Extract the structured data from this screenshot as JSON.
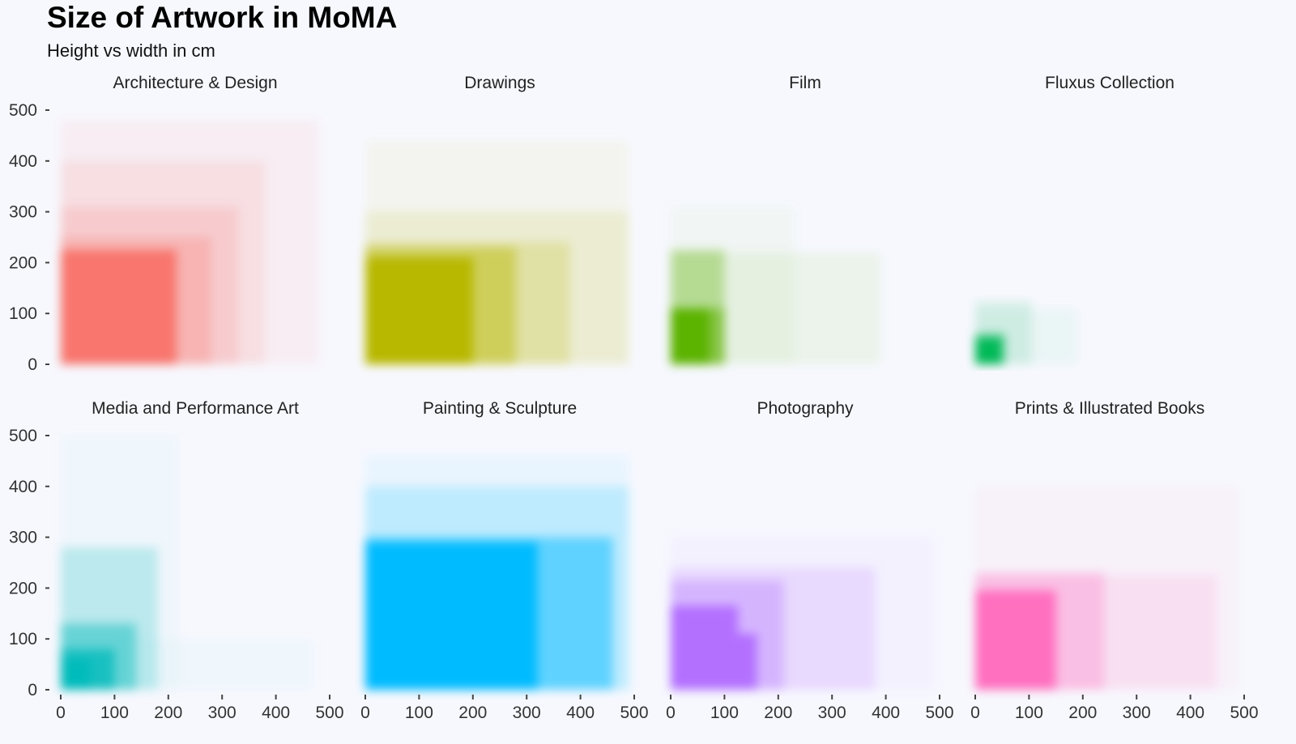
{
  "chart_data": {
    "type": "heatmap",
    "title": "Size of Artwork in MoMA",
    "subtitle": "Height vs width in cm",
    "xlabel": "",
    "ylabel": "",
    "xlim": [
      0,
      500
    ],
    "ylim": [
      0,
      500
    ],
    "x_ticks": [
      0,
      100,
      200,
      300,
      400,
      500
    ],
    "y_ticks": [
      0,
      100,
      200,
      300,
      400,
      500
    ],
    "legend": "none",
    "grid": false,
    "panels": [
      {
        "name": "Architecture & Design",
        "color": "#F8766D",
        "regions": [
          {
            "w": 480,
            "h": 480,
            "alpha": 0.08
          },
          {
            "w": 380,
            "h": 400,
            "alpha": 0.12
          },
          {
            "w": 330,
            "h": 310,
            "alpha": 0.18
          },
          {
            "w": 280,
            "h": 250,
            "alpha": 0.28
          },
          {
            "w": 215,
            "h": 225,
            "alpha": 1.0
          }
        ]
      },
      {
        "name": "Drawings",
        "color": "#B8B800",
        "regions": [
          {
            "w": 490,
            "h": 440,
            "alpha": 0.06
          },
          {
            "w": 490,
            "h": 300,
            "alpha": 0.12
          },
          {
            "w": 380,
            "h": 240,
            "alpha": 0.22
          },
          {
            "w": 280,
            "h": 230,
            "alpha": 0.45
          },
          {
            "w": 200,
            "h": 210,
            "alpha": 1.0
          }
        ]
      },
      {
        "name": "Film",
        "color": "#5BB300",
        "regions": [
          {
            "w": 230,
            "h": 310,
            "alpha": 0.04
          },
          {
            "w": 390,
            "h": 220,
            "alpha": 0.08
          },
          {
            "w": 100,
            "h": 225,
            "alpha": 0.35
          },
          {
            "w": 100,
            "h": 110,
            "alpha": 0.55
          },
          {
            "w": 72,
            "h": 110,
            "alpha": 1.0
          }
        ]
      },
      {
        "name": "Fluxus Collection",
        "color": "#00B957",
        "regions": [
          {
            "w": 190,
            "h": 110,
            "alpha": 0.05
          },
          {
            "w": 105,
            "h": 125,
            "alpha": 0.12
          },
          {
            "w": 55,
            "h": 60,
            "alpha": 0.6
          },
          {
            "w": 48,
            "h": 50,
            "alpha": 1.0
          }
        ]
      },
      {
        "name": "Media and Performance Art",
        "color": "#00BBBB",
        "regions": [
          {
            "w": 470,
            "h": 100,
            "alpha": 0.03
          },
          {
            "w": 220,
            "h": 500,
            "alpha": 0.03
          },
          {
            "w": 180,
            "h": 280,
            "alpha": 0.22
          },
          {
            "w": 140,
            "h": 130,
            "alpha": 0.45
          },
          {
            "w": 100,
            "h": 80,
            "alpha": 0.75
          },
          {
            "w": 55,
            "h": 60,
            "alpha": 1.0
          }
        ]
      },
      {
        "name": "Painting & Sculpture",
        "color": "#00BBFF",
        "regions": [
          {
            "w": 490,
            "h": 460,
            "alpha": 0.06
          },
          {
            "w": 490,
            "h": 400,
            "alpha": 0.18
          },
          {
            "w": 460,
            "h": 300,
            "alpha": 0.5
          },
          {
            "w": 320,
            "h": 290,
            "alpha": 1.0
          }
        ]
      },
      {
        "name": "Photography",
        "color": "#B36FFF",
        "regions": [
          {
            "w": 490,
            "h": 300,
            "alpha": 0.06
          },
          {
            "w": 380,
            "h": 240,
            "alpha": 0.18
          },
          {
            "w": 210,
            "h": 215,
            "alpha": 0.35
          },
          {
            "w": 125,
            "h": 165,
            "alpha": 1.0
          },
          {
            "w": 160,
            "h": 110,
            "alpha": 1.0
          }
        ]
      },
      {
        "name": "Prints & Illustrated Books",
        "color": "#FF6FBF",
        "regions": [
          {
            "w": 490,
            "h": 400,
            "alpha": 0.06
          },
          {
            "w": 450,
            "h": 225,
            "alpha": 0.12
          },
          {
            "w": 240,
            "h": 230,
            "alpha": 0.3
          },
          {
            "w": 150,
            "h": 195,
            "alpha": 1.0
          }
        ]
      }
    ]
  }
}
